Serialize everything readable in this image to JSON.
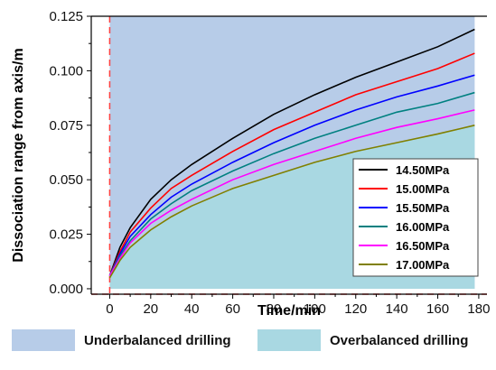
{
  "chart_data": {
    "type": "line",
    "xlabel": "Time/min",
    "ylabel": "Dissociation range from axis/m",
    "xlim": [
      -9,
      184
    ],
    "ylim": [
      -0.0025,
      0.125
    ],
    "xticks": [
      0,
      20,
      40,
      60,
      80,
      100,
      120,
      140,
      160,
      180
    ],
    "xtick_labels": [
      "0",
      "20",
      "40",
      "60",
      "80",
      "100",
      "120",
      "140",
      "160",
      "180"
    ],
    "yticks": [
      0.0,
      0.025,
      0.05,
      0.075,
      0.1,
      0.125
    ],
    "ytick_labels": [
      "0.000",
      "0.025",
      "0.050",
      "0.075",
      "0.100",
      "0.125"
    ],
    "x": [
      0,
      5,
      10,
      20,
      30,
      40,
      60,
      80,
      100,
      120,
      140,
      160,
      178
    ],
    "series": [
      {
        "name": "14.50MPa",
        "color": "#000000",
        "values": [
          0.006,
          0.019,
          0.028,
          0.041,
          0.05,
          0.057,
          0.069,
          0.08,
          0.089,
          0.097,
          0.104,
          0.111,
          0.119
        ]
      },
      {
        "name": "15.00MPa",
        "color": "#ff0000",
        "values": [
          0.006,
          0.017,
          0.026,
          0.037,
          0.046,
          0.052,
          0.063,
          0.073,
          0.081,
          0.089,
          0.095,
          0.101,
          0.108
        ]
      },
      {
        "name": "15.50MPa",
        "color": "#0000ff",
        "values": [
          0.006,
          0.016,
          0.024,
          0.034,
          0.042,
          0.048,
          0.058,
          0.067,
          0.075,
          0.082,
          0.088,
          0.093,
          0.098
        ]
      },
      {
        "name": "16.00MPa",
        "color": "#008080",
        "values": [
          0.006,
          0.015,
          0.022,
          0.032,
          0.039,
          0.045,
          0.054,
          0.062,
          0.069,
          0.075,
          0.081,
          0.085,
          0.09
        ]
      },
      {
        "name": "16.50MPa",
        "color": "#ff00ff",
        "values": [
          0.006,
          0.014,
          0.021,
          0.03,
          0.036,
          0.041,
          0.05,
          0.057,
          0.063,
          0.069,
          0.074,
          0.078,
          0.082
        ]
      },
      {
        "name": "17.00MPa",
        "color": "#808000",
        "values": [
          0.005,
          0.013,
          0.019,
          0.027,
          0.033,
          0.038,
          0.046,
          0.052,
          0.058,
          0.063,
          0.067,
          0.071,
          0.075
        ]
      }
    ],
    "reference_lines": [
      {
        "orientation": "vertical",
        "at": 0,
        "color": "#ff4040",
        "style": "dashed"
      },
      {
        "orientation": "horizontal",
        "at": -0.0025,
        "color": "#ff4040",
        "style": "dashed"
      }
    ],
    "regions": [
      {
        "name": "Underbalanced drilling",
        "color": "#b7cce8",
        "description": "above 17.00MPa curve"
      },
      {
        "name": "Overbalanced drilling",
        "color": "#a9d8e2",
        "description": "below 17.00MPa curve"
      }
    ],
    "legend_position": "right",
    "grid": false
  }
}
